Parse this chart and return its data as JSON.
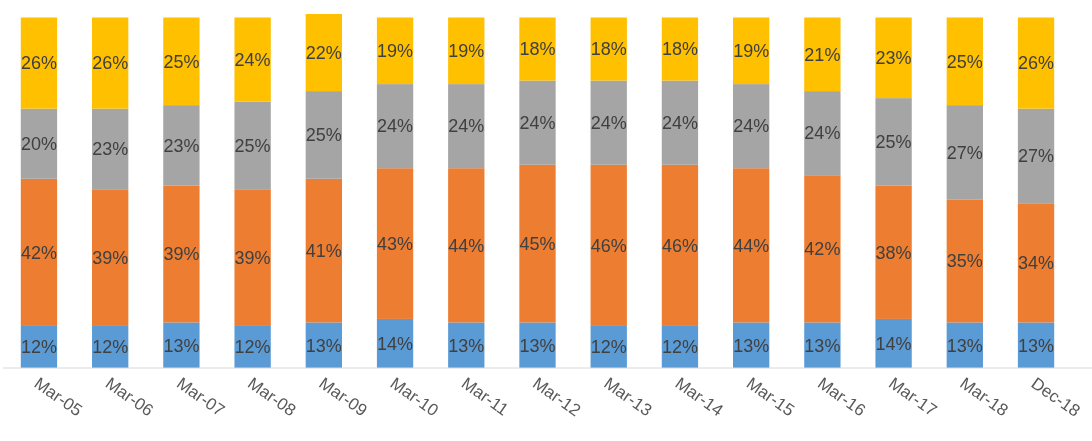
{
  "chart_data": {
    "type": "bar",
    "stacked": true,
    "categories": [
      "Mar-05",
      "Mar-06",
      "Mar-07",
      "Mar-08",
      "Mar-09",
      "Mar-10",
      "Mar-11",
      "Mar-12",
      "Mar-13",
      "Mar-14",
      "Mar-15",
      "Mar-16",
      "Mar-17",
      "Mar-18",
      "Dec-18"
    ],
    "series": [
      {
        "color": "#5b9bd5",
        "values": [
          12,
          12,
          13,
          12,
          13,
          14,
          13,
          13,
          12,
          12,
          13,
          13,
          14,
          13,
          13
        ],
        "value_labels": [
          "12%",
          "12%",
          "13%",
          "12%",
          "13%",
          "14%",
          "13%",
          "13%",
          "12%",
          "12%",
          "13%",
          "13%",
          "14%",
          "13%",
          "13%"
        ]
      },
      {
        "color": "#ed7d31",
        "values": [
          42,
          39,
          39,
          39,
          41,
          43,
          44,
          45,
          46,
          46,
          44,
          42,
          38,
          35,
          34
        ],
        "value_labels": [
          "42%",
          "39%",
          "39%",
          "39%",
          "41%",
          "43%",
          "44%",
          "45%",
          "46%",
          "46%",
          "44%",
          "42%",
          "38%",
          "35%",
          "34%"
        ]
      },
      {
        "color": "#a5a5a5",
        "values": [
          20,
          23,
          23,
          25,
          25,
          24,
          24,
          24,
          24,
          24,
          24,
          24,
          25,
          27,
          27
        ],
        "value_labels": [
          "20%",
          "23%",
          "23%",
          "25%",
          "25%",
          "24%",
          "24%",
          "24%",
          "24%",
          "24%",
          "24%",
          "24%",
          "25%",
          "27%",
          "27%"
        ]
      },
      {
        "color": "#ffc000",
        "values": [
          26,
          26,
          25,
          24,
          22,
          19,
          19,
          18,
          18,
          18,
          19,
          21,
          23,
          25,
          26
        ],
        "value_labels": [
          "26%",
          "26%",
          "25%",
          "24%",
          "22%",
          "19%",
          "19%",
          "18%",
          "18%",
          "18%",
          "19%",
          "21%",
          "23%",
          "25%",
          "26%"
        ]
      }
    ]
  }
}
